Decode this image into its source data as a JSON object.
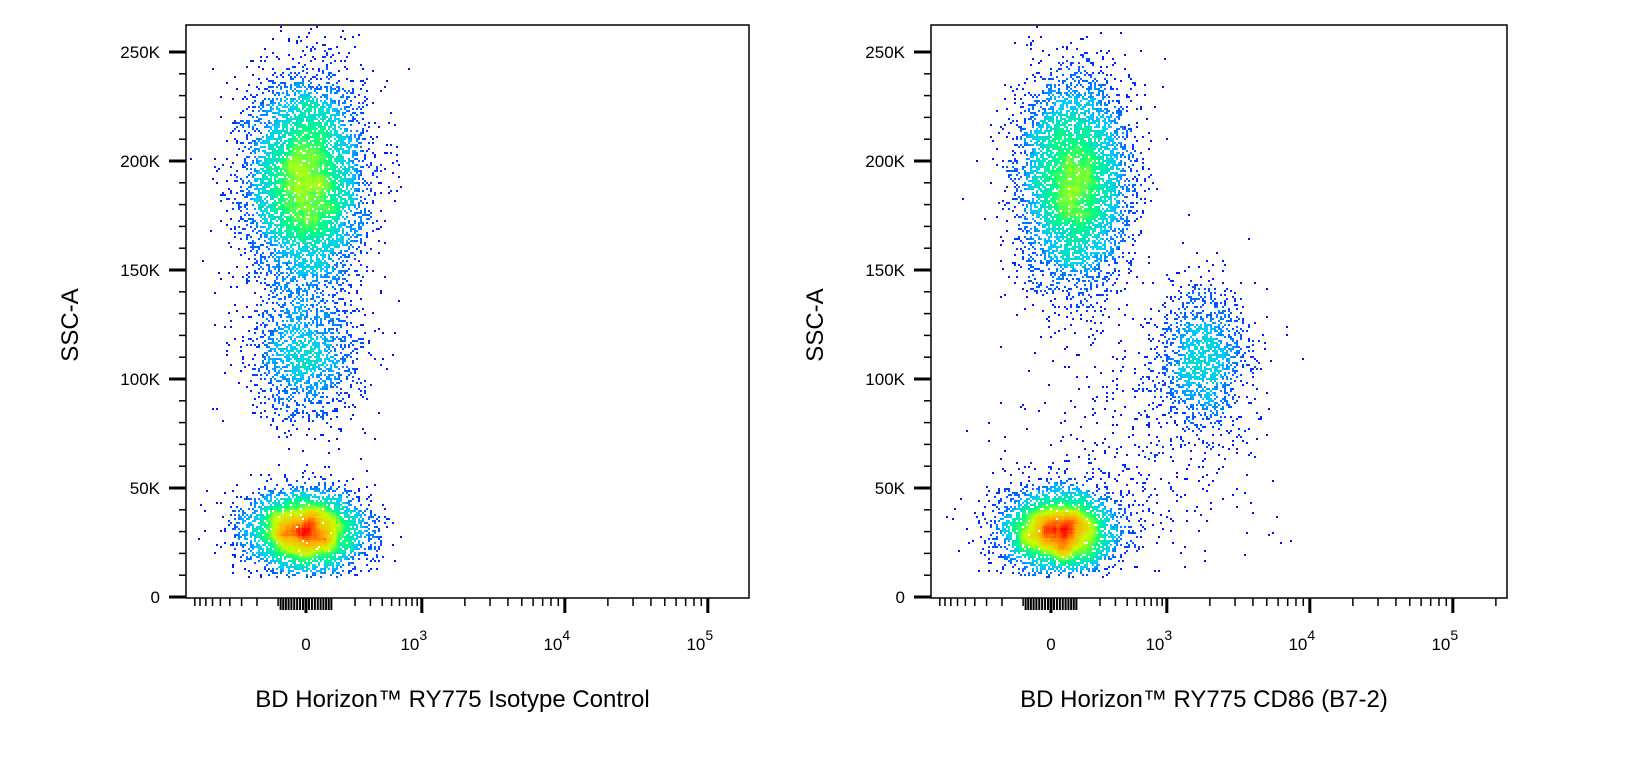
{
  "chart_data": [
    {
      "type": "scatter",
      "subtype": "density-dot-plot",
      "xlabel": "BD Horizon™ RY775  Isotype Control",
      "ylabel": "SSC-A",
      "x_scale": "biexponential",
      "xlim": [
        -600,
        200000
      ],
      "ylim": [
        0,
        262000
      ],
      "y_ticks": [
        "0",
        "50K",
        "100K",
        "150K",
        "200K",
        "250K"
      ],
      "y_tick_values": [
        0,
        50000,
        100000,
        150000,
        200000,
        250000
      ],
      "x_ticks": [
        {
          "base": "0",
          "exp": ""
        },
        {
          "base": "10",
          "exp": "3"
        },
        {
          "base": "10",
          "exp": "4"
        },
        {
          "base": "10",
          "exp": "5"
        }
      ],
      "x_tick_values": [
        0,
        1000,
        10000,
        100000
      ],
      "colormap": [
        "#0000ff",
        "#00c8ff",
        "#00ff80",
        "#c8ff00",
        "#ffb000",
        "#ff0000"
      ],
      "populations": [
        {
          "x": 0,
          "y": 190000,
          "x_spread_decades": 0.2,
          "y_spread": 24000,
          "events": 7000
        },
        {
          "x": 0,
          "y": 110000,
          "x_spread_decades": 0.2,
          "y_spread": 15000,
          "events": 1500
        },
        {
          "x": 0,
          "y": 30000,
          "x_spread_decades": 0.2,
          "y_spread": 9000,
          "events": 5000
        }
      ]
    },
    {
      "type": "scatter",
      "subtype": "density-dot-plot",
      "xlabel": "BD Horizon™ RY775  CD86 (B7-2)",
      "ylabel": "SSC-A",
      "x_scale": "biexponential",
      "xlim": [
        -600,
        200000
      ],
      "ylim": [
        0,
        262000
      ],
      "y_ticks": [
        "0",
        "50K",
        "100K",
        "150K",
        "200K",
        "250K"
      ],
      "y_tick_values": [
        0,
        50000,
        100000,
        150000,
        200000,
        250000
      ],
      "x_ticks": [
        {
          "base": "0",
          "exp": ""
        },
        {
          "base": "10",
          "exp": "3"
        },
        {
          "base": "10",
          "exp": "4"
        },
        {
          "base": "10",
          "exp": "5"
        }
      ],
      "x_tick_values": [
        0,
        1000,
        10000,
        100000
      ],
      "colormap": [
        "#0000ff",
        "#00c8ff",
        "#00ff80",
        "#c8ff00",
        "#ffb000",
        "#ff0000"
      ],
      "populations": [
        {
          "x": 80,
          "y": 190000,
          "x_spread_decades": 0.19,
          "y_spread": 24000,
          "events": 6000
        },
        {
          "x": 1800,
          "y": 110000,
          "x_spread_decades": 0.16,
          "y_spread": 16000,
          "events": 1400
        },
        {
          "x": 30,
          "y": 30000,
          "x_spread_decades": 0.19,
          "y_spread": 9000,
          "events": 5000
        },
        {
          "x": 600,
          "y": 70000,
          "x_spread_decades": 0.45,
          "y_spread": 30000,
          "events": 500
        }
      ]
    }
  ]
}
